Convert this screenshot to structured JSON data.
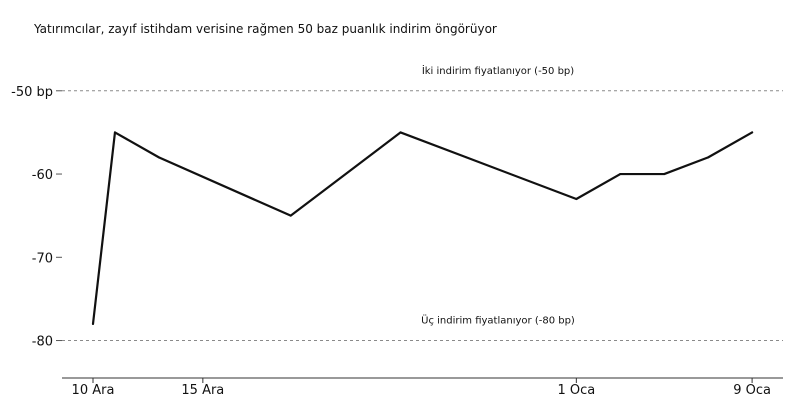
{
  "chart_data": {
    "type": "line",
    "title": "",
    "subtitle": "Yatırımcılar, zayıf istihdam verisine rağmen 50 baz puanlık indirim öngörüyor",
    "xlabel": "",
    "ylabel": "",
    "x_ticks": [
      {
        "day": 0,
        "label": "10 Ara"
      },
      {
        "day": 5,
        "label": "15 Ara"
      },
      {
        "day": 22,
        "label": "1 Oca"
      },
      {
        "day": 30,
        "label": "9 Oca"
      }
    ],
    "y_ticks": [
      {
        "value": -50,
        "label": "-50 bp"
      },
      {
        "value": -60,
        "label": "-60"
      },
      {
        "value": -70,
        "label": "-70"
      },
      {
        "value": -80,
        "label": "-80"
      }
    ],
    "ylim": [
      -84.5,
      -44.5
    ],
    "grid": false,
    "series": [
      {
        "color": "#111111",
        "points": [
          {
            "x": "10 Ara",
            "y": -78
          },
          {
            "x": "11 Ara",
            "y": -55
          },
          {
            "x": "13 Ara",
            "y": -58
          },
          {
            "x": "19 Ara",
            "y": -65
          },
          {
            "x": "20 Ara",
            "y": -63
          },
          {
            "x": "24 Ara",
            "y": -55
          },
          {
            "x": "27 Ara",
            "y": -58
          },
          {
            "x": "1 Oca",
            "y": -63
          },
          {
            "x": "3 Oca",
            "y": -60
          },
          {
            "x": "5 Oca",
            "y": -60
          },
          {
            "x": "7 Oca",
            "y": -58
          },
          {
            "x": "9 Oca",
            "y": -55
          }
        ]
      }
    ],
    "reference_lines": [
      {
        "value": -50,
        "label": "İki indirim fiyatlanıyor (-50 bp)"
      },
      {
        "value": -80,
        "label": "Üç indirim fiyatlanıyor (-80 bp)"
      }
    ]
  }
}
